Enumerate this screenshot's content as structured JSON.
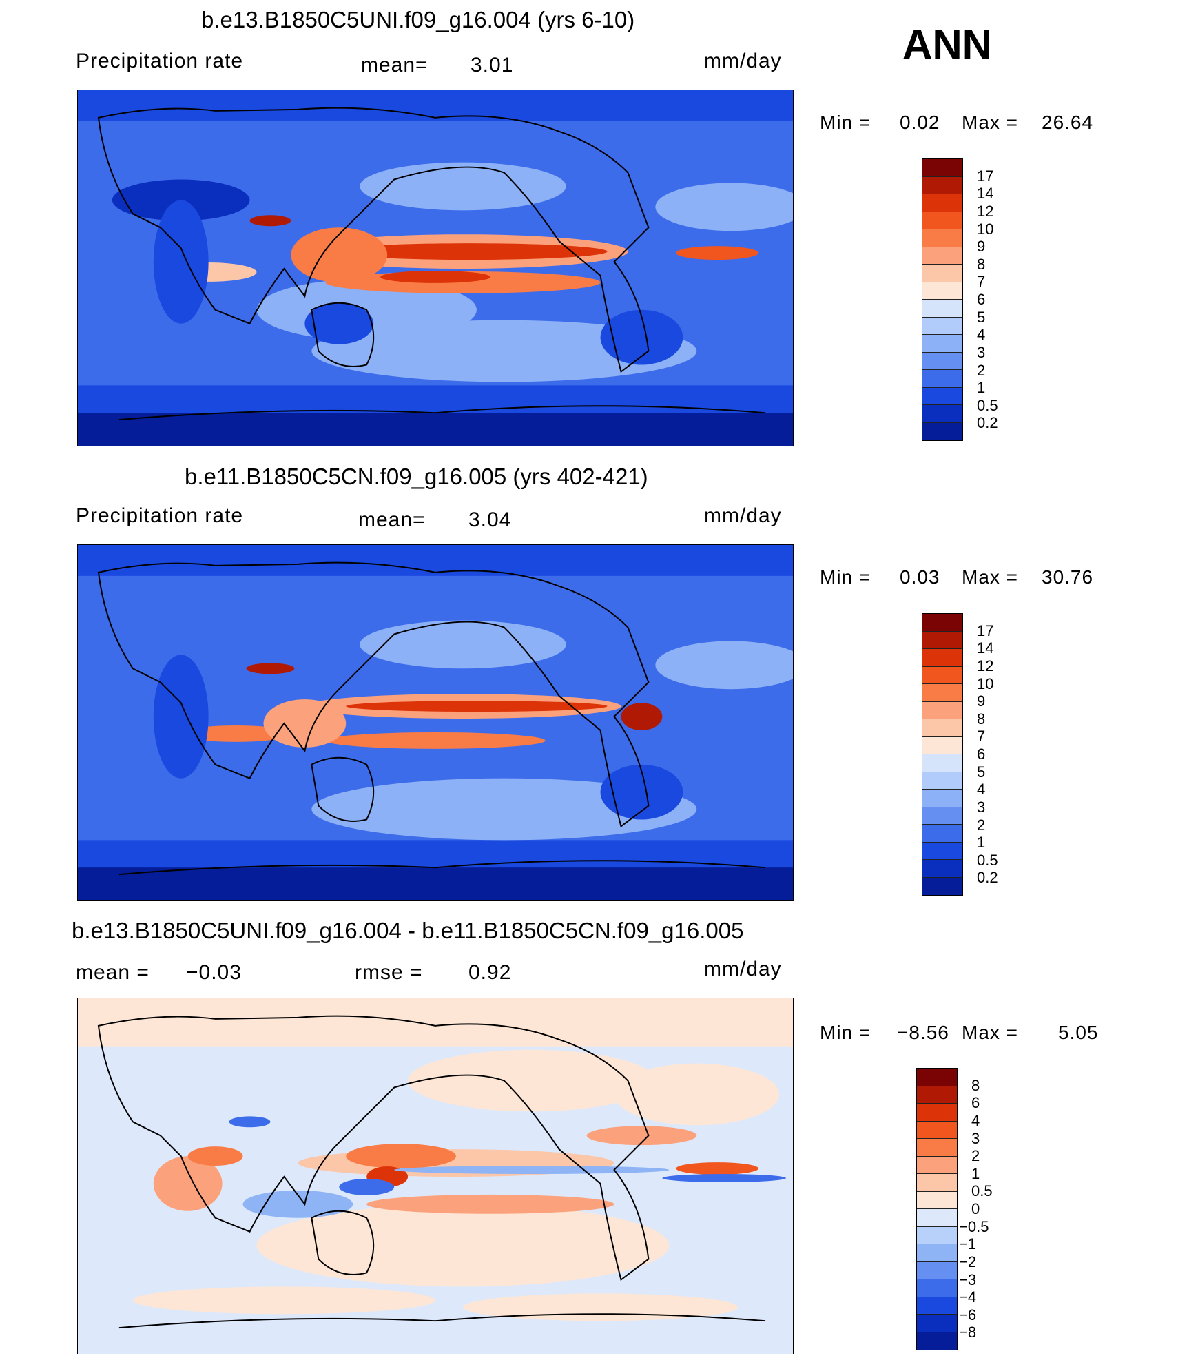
{
  "season": "ANN",
  "panels": [
    {
      "title": "b.e13.B1850C5UNI.f09_g16.004 (yrs 6-10)",
      "left_label": "Precipitation  rate",
      "center_label": "mean=",
      "center_value": "3.01",
      "units": "mm/day",
      "min_label": "Min  =",
      "min_value": "0.02",
      "max_label": "Max  =",
      "max_value": "26.64"
    },
    {
      "title": "b.e11.B1850C5CN.f09_g16.005 (yrs 402-421)",
      "left_label": "Precipitation  rate",
      "center_label": "mean=",
      "center_value": "3.04",
      "units": "mm/day",
      "min_label": "Min  =",
      "min_value": "0.03",
      "max_label": "Max  =",
      "max_value": "30.76"
    },
    {
      "title": "b.e13.B1850C5UNI.f09_g16.004 - b.e11.B1850C5CN.f09_g16.005",
      "left_label": "mean  =",
      "left_value": "−0.03",
      "center_label": "rmse  =",
      "center_value": "0.92",
      "units": "mm/day",
      "min_label": "Min  =",
      "min_value": "−8.56",
      "max_label": "Max  =",
      "max_value": "5.05"
    }
  ],
  "colorbars": {
    "precip": {
      "labels": [
        "17",
        "14",
        "12",
        "10",
        "9",
        "8",
        "7",
        "6",
        "5",
        "4",
        "3",
        "2",
        "1",
        "0.5",
        "0.2"
      ],
      "colors": [
        "#7a0403",
        "#b01a04",
        "#dc3408",
        "#f0561e",
        "#f97c47",
        "#fba27c",
        "#fcc6a8",
        "#fde6d6",
        "#d5e4fb",
        "#b1ccfa",
        "#8cb1f6",
        "#6590f2",
        "#3d6ceb",
        "#1a49e0",
        "#0a2fbf",
        "#051d98"
      ]
    },
    "diff": {
      "labels": [
        "8",
        "6",
        "4",
        "3",
        "2",
        "1",
        "0.5",
        "0",
        "−0.5",
        "−1",
        "−2",
        "−3",
        "−4",
        "−6",
        "−8"
      ],
      "colors": [
        "#7a0403",
        "#b01a04",
        "#dc3408",
        "#f0561e",
        "#f97c47",
        "#fba27c",
        "#fcc6a8",
        "#fde6d6",
        "#dde9fb",
        "#b8d1fa",
        "#8fb4f6",
        "#6590f2",
        "#3d6ceb",
        "#1a49e0",
        "#0a2fbf",
        "#051d98"
      ]
    }
  }
}
